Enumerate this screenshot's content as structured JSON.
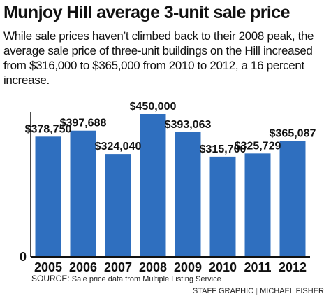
{
  "title": "Munjoy Hill average 3-unit sale price",
  "subtitle": "While sale prices haven’t climbed back to their 2008 peak, the average sale price of three-unit buildings on the Hill increased from $316,000 to $365,000 from 2010 to 2012, a 16 percent increase.",
  "source": {
    "label": "SOURCE:",
    "text": "Sale price data from Multiple Listing Service"
  },
  "credit": {
    "staff": "STAFF GRAPHIC",
    "separator": "|",
    "author": "MICHAEL FISHER"
  },
  "colors": {
    "bar": "#2f6fbf",
    "axis": "#111111",
    "text": "#111111"
  },
  "chart_data": {
    "type": "bar",
    "categories": [
      "2005",
      "2006",
      "2007",
      "2008",
      "2009",
      "2010",
      "2011",
      "2012"
    ],
    "values": [
      378750,
      397688,
      324040,
      450000,
      393063,
      315700,
      325729,
      365087
    ],
    "value_labels": [
      "$378,750",
      "$397,688",
      "$324,040",
      "$450,000",
      "$393,063",
      "$315,700",
      "$325,729",
      "$365,087"
    ],
    "y_tick_labels": [
      "0"
    ],
    "ylim": [
      0,
      450000
    ],
    "title": "",
    "xlabel": "",
    "ylabel": "",
    "grid": false,
    "legend": "none"
  }
}
